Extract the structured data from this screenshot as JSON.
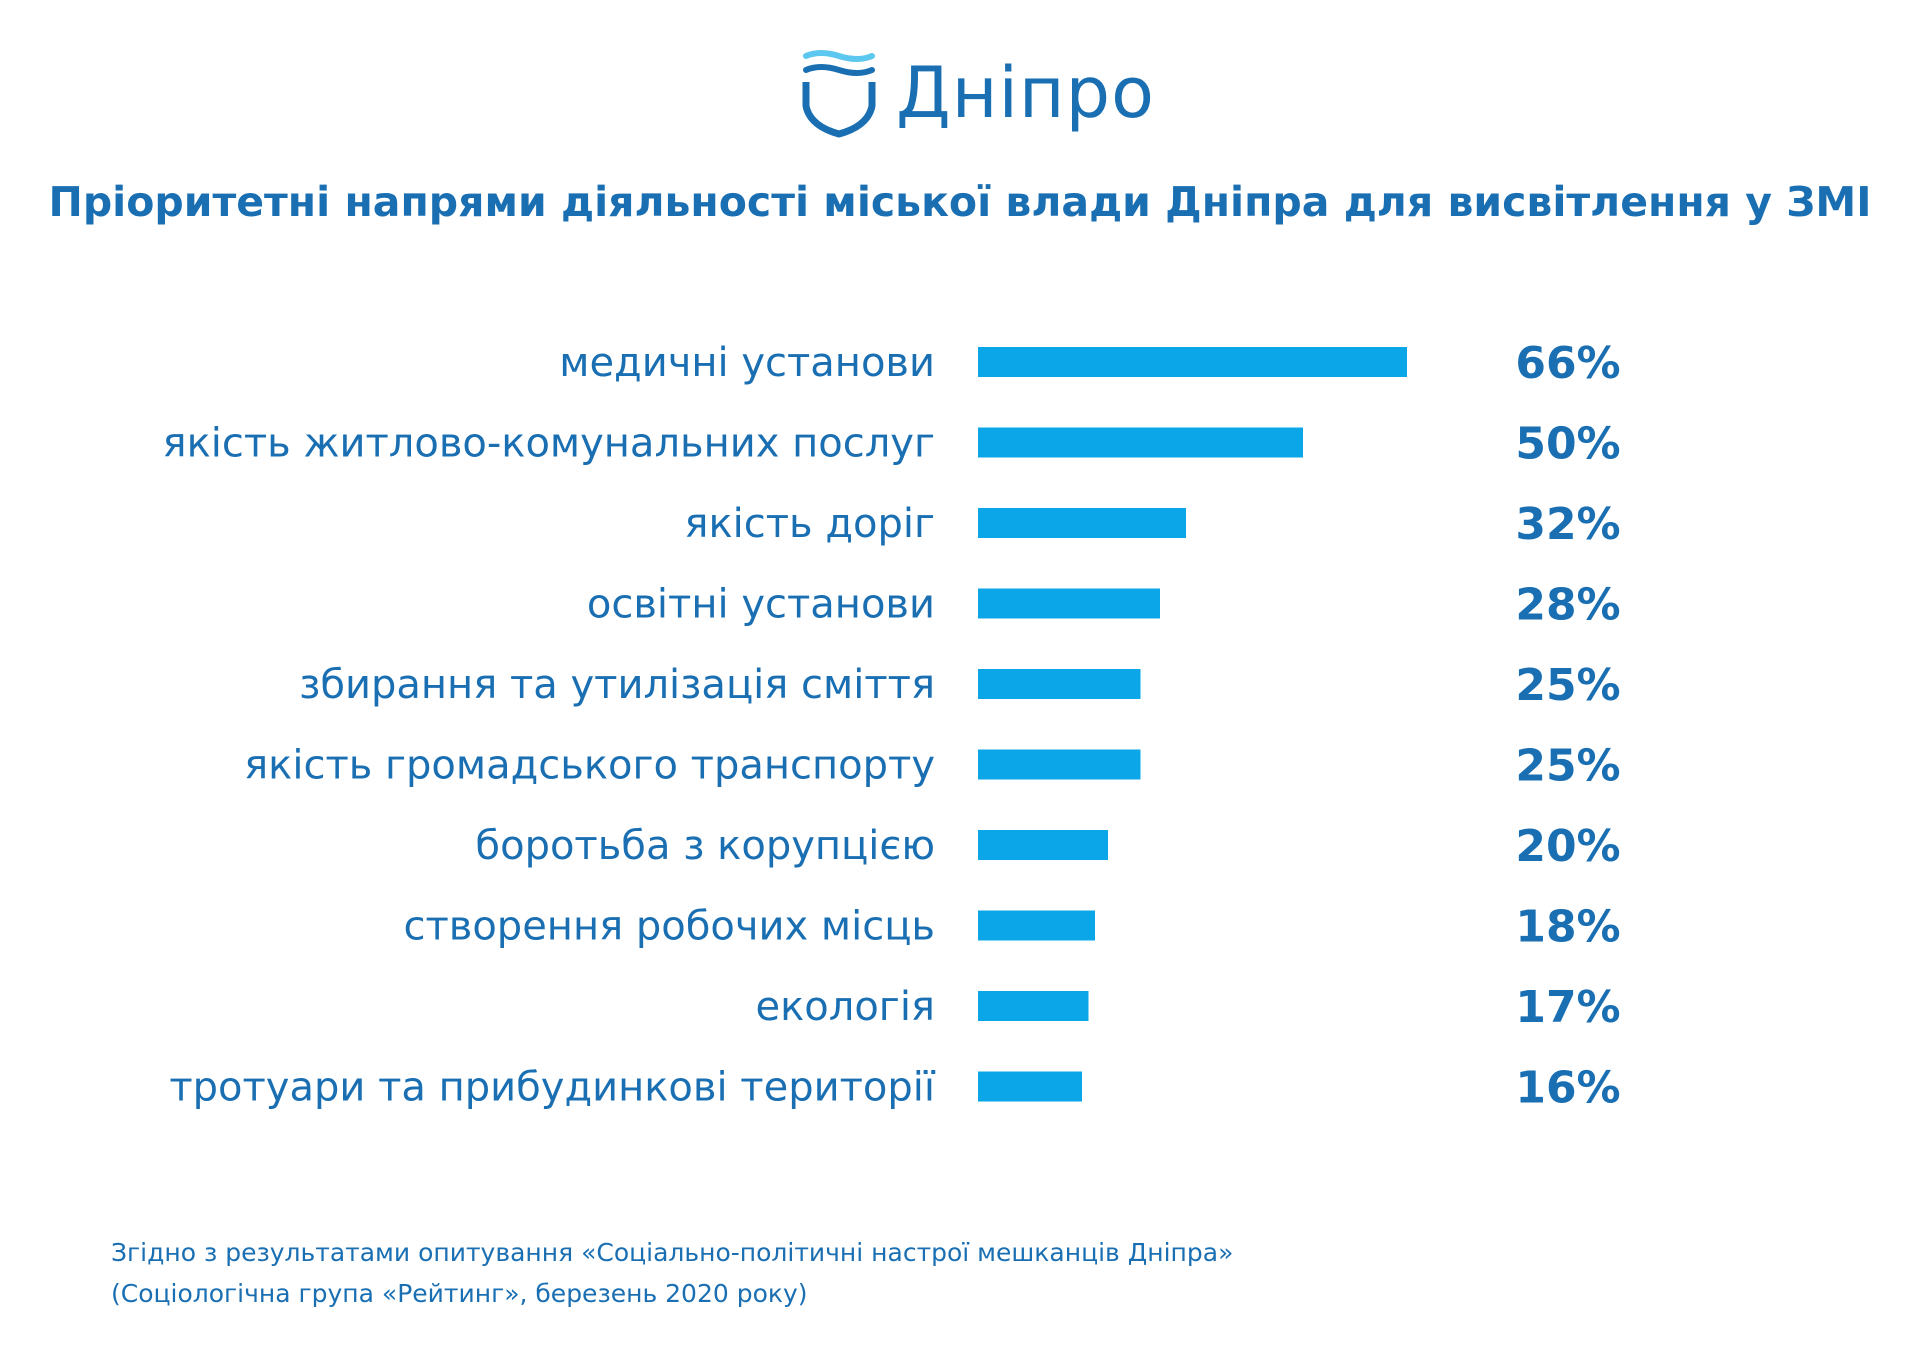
{
  "logo": {
    "text": "Дніпро",
    "icon": "shield-wave-icon",
    "color": "#1a6fb3"
  },
  "chart_data": {
    "type": "bar",
    "orientation": "horizontal",
    "title": "Пріоритетні напрями діяльності міської влади Дніпра для висвітлення у ЗМІ",
    "categories": [
      "медичні установи",
      "якість житлово-комунальних послуг",
      "якість доріг",
      "освітні установи",
      "збирання та утилізація сміття",
      "якість громадського транспорту",
      "боротьба з корупцією",
      "створення робочих місць",
      "екологія",
      "тротуари та прибудинкові території"
    ],
    "values": [
      66,
      50,
      32,
      28,
      25,
      25,
      20,
      18,
      17,
      16
    ],
    "value_labels": [
      "66%",
      "50%",
      "32%",
      "28%",
      "25%",
      "25%",
      "20%",
      "18%",
      "17%",
      "16%"
    ],
    "bar_color": "#0aa6e8",
    "text_color": "#1a6fb3",
    "grid": false,
    "legend": "none"
  },
  "footnote": {
    "line1": "Згідно з результатами опитування «Соціально-політичні настрої мешканців Дніпра»",
    "line2": "(Соціологічна група «Рейтинг», березень 2020 року)"
  }
}
